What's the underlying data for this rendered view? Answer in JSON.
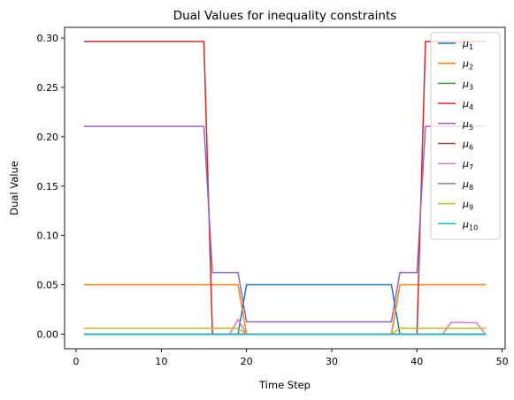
{
  "chart_data": {
    "type": "line",
    "title": "Dual Values for inequality constraints",
    "xlabel": "Time Step",
    "ylabel": "Dual Value",
    "xlim": [
      -1.35,
      50.35
    ],
    "ylim": [
      -0.0148,
      0.3108
    ],
    "xticks": [
      0,
      10,
      20,
      30,
      40,
      50
    ],
    "xtick_labels": [
      "0",
      "10",
      "20",
      "30",
      "40",
      "50"
    ],
    "yticks": [
      0.0,
      0.05,
      0.1,
      0.15,
      0.2,
      0.25,
      0.3
    ],
    "ytick_labels": [
      "0.00",
      "0.05",
      "0.10",
      "0.15",
      "0.20",
      "0.25",
      "0.30"
    ],
    "legend_position": "top-right",
    "x": [
      1,
      48
    ],
    "series": [
      {
        "name": "μ1",
        "base": "μ",
        "sub": "1",
        "color": "#1f77b4",
        "points": [
          [
            1,
            0
          ],
          [
            19,
            0
          ],
          [
            20,
            0.05
          ],
          [
            37,
            0.05
          ],
          [
            38,
            0
          ],
          [
            48,
            0
          ]
        ]
      },
      {
        "name": "μ2",
        "base": "μ",
        "sub": "2",
        "color": "#ff7f0e",
        "points": [
          [
            1,
            0.05
          ],
          [
            19,
            0.05
          ],
          [
            20,
            0
          ],
          [
            37,
            0
          ],
          [
            38,
            0.05
          ],
          [
            48,
            0.05
          ]
        ]
      },
      {
        "name": "μ3",
        "base": "μ",
        "sub": "3",
        "color": "#2ca02c",
        "points": [
          [
            1,
            0
          ],
          [
            48,
            0
          ]
        ]
      },
      {
        "name": "μ4",
        "base": "μ",
        "sub": "4",
        "color": "#d62728",
        "points": [
          [
            1,
            0.2965
          ],
          [
            15,
            0.2965
          ],
          [
            16,
            0
          ],
          [
            40,
            0
          ],
          [
            41,
            0.2965
          ],
          [
            48,
            0.2965
          ]
        ]
      },
      {
        "name": "μ5",
        "base": "μ",
        "sub": "5",
        "color": "#9467bd",
        "points": [
          [
            1,
            0.2105
          ],
          [
            15,
            0.2105
          ],
          [
            16,
            0.0625
          ],
          [
            19,
            0.0625
          ],
          [
            20,
            0.0125
          ],
          [
            37,
            0.0125
          ],
          [
            38,
            0.0625
          ],
          [
            40,
            0.0625
          ],
          [
            41,
            0.2105
          ],
          [
            48,
            0.2105
          ]
        ]
      },
      {
        "name": "μ6",
        "base": "μ",
        "sub": "6",
        "color": "#8c564b",
        "points": [
          [
            1,
            0
          ],
          [
            48,
            0
          ]
        ]
      },
      {
        "name": "μ7",
        "base": "μ",
        "sub": "7",
        "color": "#e377c2",
        "points": [
          [
            1,
            0
          ],
          [
            18,
            0
          ],
          [
            19,
            0.015
          ],
          [
            20,
            0
          ],
          [
            43,
            0
          ],
          [
            44,
            0.012
          ],
          [
            47,
            0.0115
          ],
          [
            48,
            0
          ]
        ]
      },
      {
        "name": "μ8",
        "base": "μ",
        "sub": "8",
        "color": "#7f7f7f",
        "points": [
          [
            1,
            0
          ],
          [
            48,
            0
          ]
        ]
      },
      {
        "name": "μ9",
        "base": "μ",
        "sub": "9",
        "color": "#bcbd22",
        "points": [
          [
            1,
            0.006
          ],
          [
            19,
            0.006
          ],
          [
            20,
            0
          ],
          [
            37,
            0
          ],
          [
            38,
            0.006
          ],
          [
            48,
            0.006
          ]
        ]
      },
      {
        "name": "μ10",
        "base": "μ",
        "sub": "10",
        "color": "#17becf",
        "points": [
          [
            1,
            0
          ],
          [
            48,
            0
          ]
        ]
      }
    ]
  }
}
